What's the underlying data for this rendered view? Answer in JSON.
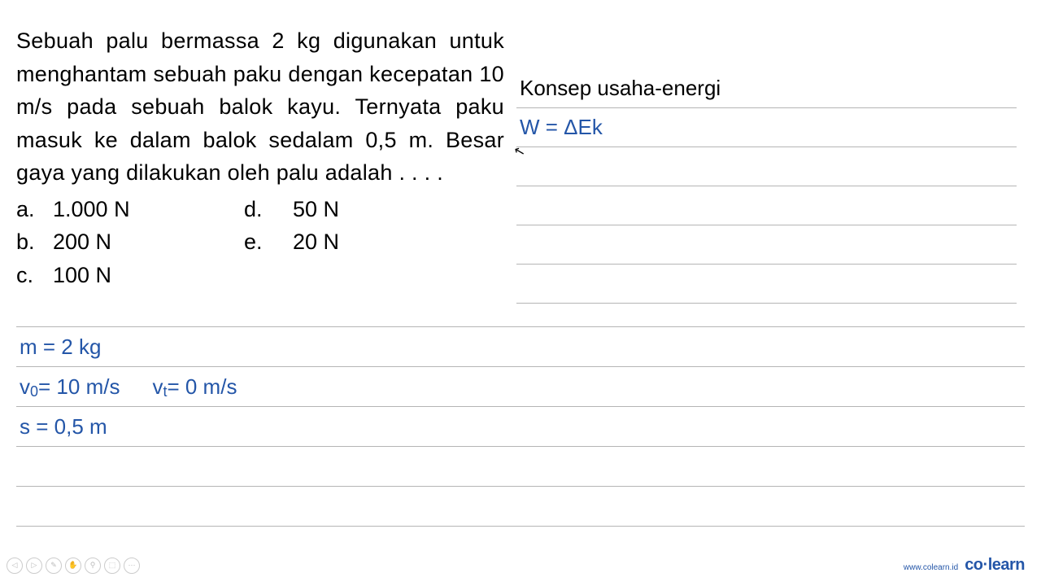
{
  "question": {
    "text": "Sebuah palu bermassa 2 kg digunakan untuk menghantam sebuah paku dengan kecepatan 10 m/s pada sebuah balok kayu. Ternyata paku masuk ke dalam balok sedalam 0,5 m. Besar gaya yang dilakukan oleh palu adalah . . . .",
    "options": {
      "a": "1.000 N",
      "b": "200 N",
      "c": "100 N",
      "d": "  50 N",
      "e": "  20 N"
    }
  },
  "concept": {
    "title": "Konsep usaha-energi",
    "formula": "W = ΔEk"
  },
  "given": {
    "mass": "m = 2 kg",
    "v0_label": "v",
    "v0_sub": "0",
    "v0_val": " = 10 m/s",
    "vt_label": "v",
    "vt_sub": "t",
    "vt_val": " = 0 m/s",
    "distance": "s = 0,5 m"
  },
  "footer": {
    "url": "www.colearn.id",
    "logo": "co·learn"
  },
  "colors": {
    "text_black": "#000000",
    "text_blue": "#2456a8",
    "rule_gray": "#b5b5b5",
    "icon_gray": "#cccccc",
    "background": "#ffffff"
  },
  "typography": {
    "question_fontsize": 27,
    "line_fontsize": 26,
    "footer_url_fontsize": 10,
    "footer_logo_fontsize": 20
  }
}
